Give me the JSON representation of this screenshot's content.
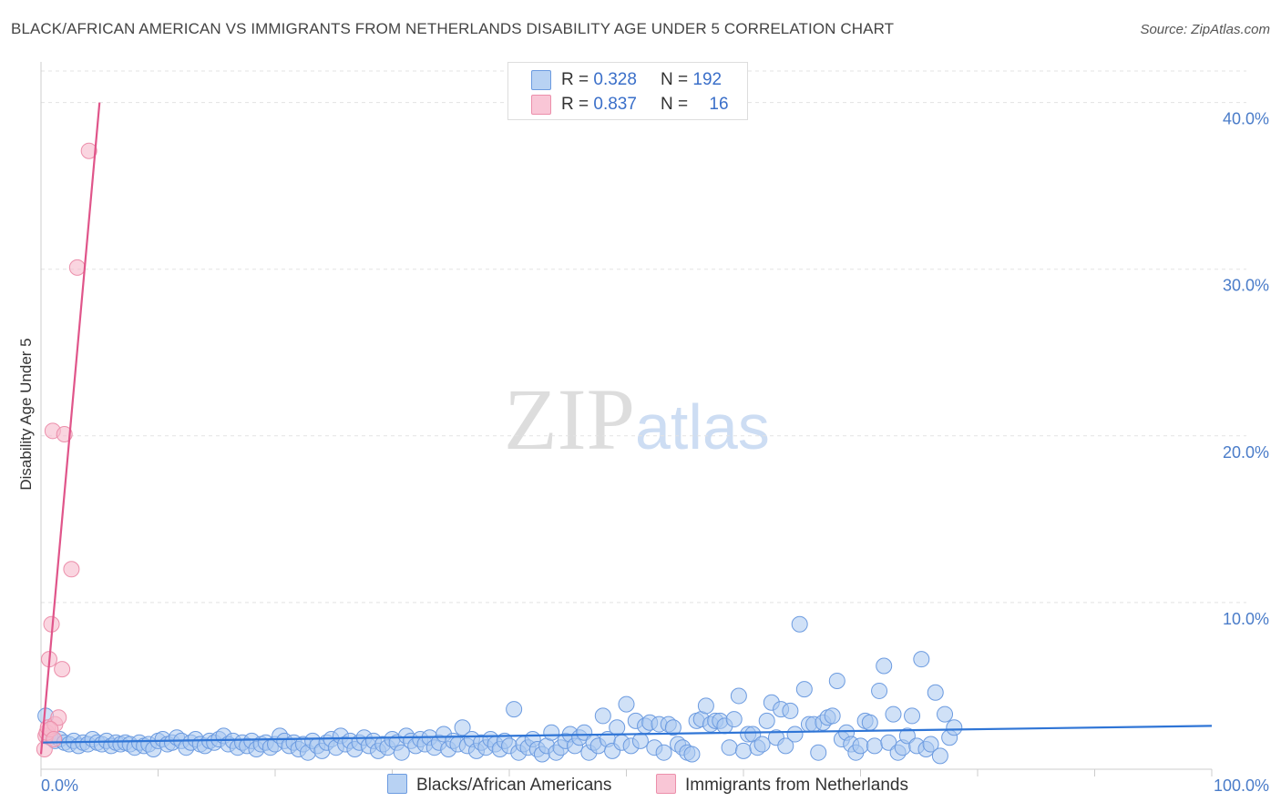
{
  "title": "BLACK/AFRICAN AMERICAN VS IMMIGRANTS FROM NETHERLANDS DISABILITY AGE UNDER 5 CORRELATION CHART",
  "source": "Source: ZipAtlas.com",
  "watermark": {
    "zip": "ZIP",
    "atlas": "atlas"
  },
  "colors": {
    "blue_fill": "#a9c8f0",
    "blue_stroke": "#6c9be0",
    "blue_line": "#2f75d6",
    "pink_fill": "#f7b9cb",
    "pink_stroke": "#ec8fab",
    "pink_line": "#e0558a",
    "grid": "#e3e3e3",
    "tick": "#4a7cc9"
  },
  "legend": {
    "rows": [
      {
        "r_label": "R = ",
        "r_value": "0.328",
        "n_label": "N = ",
        "n_value": "192"
      },
      {
        "r_label": "R = ",
        "r_value": "0.837",
        "n_label": "N = ",
        "n_value": "16"
      }
    ]
  },
  "bottom_legend": [
    "Blacks/African Americans",
    "Immigrants from Netherlands"
  ],
  "chart_data": {
    "type": "scatter",
    "title": "BLACK/AFRICAN AMERICAN VS IMMIGRANTS FROM NETHERLANDS DISABILITY AGE UNDER 5 CORRELATION CHART",
    "xlabel": "",
    "ylabel": "Disability Age Under 5",
    "xlim": [
      0,
      100
    ],
    "ylim": [
      0,
      42
    ],
    "x_tick_labels": [
      "0.0%",
      "100.0%"
    ],
    "y_ticks": [
      10,
      20,
      30,
      40
    ],
    "y_tick_labels": [
      "10.0%",
      "20.0%",
      "30.0%",
      "40.0%"
    ],
    "series": [
      {
        "name": "Blacks/African Americans",
        "r": 0.328,
        "n": 192,
        "trend": {
          "x": [
            0,
            100
          ],
          "y": [
            1.6,
            2.6
          ]
        },
        "points": [
          [
            0.4,
            3.2
          ],
          [
            0.8,
            1.9
          ],
          [
            1.2,
            1.7
          ],
          [
            1.6,
            1.8
          ],
          [
            2,
            1.6
          ],
          [
            2.4,
            1.5
          ],
          [
            2.8,
            1.7
          ],
          [
            3.2,
            1.4
          ],
          [
            3.6,
            1.6
          ],
          [
            4,
            1.5
          ],
          [
            4.4,
            1.8
          ],
          [
            4.8,
            1.6
          ],
          [
            5.2,
            1.5
          ],
          [
            5.6,
            1.7
          ],
          [
            6,
            1.4
          ],
          [
            6.4,
            1.6
          ],
          [
            6.8,
            1.5
          ],
          [
            7.2,
            1.6
          ],
          [
            7.6,
            1.5
          ],
          [
            8,
            1.3
          ],
          [
            8.4,
            1.6
          ],
          [
            8.8,
            1.4
          ],
          [
            9.2,
            1.5
          ],
          [
            9.6,
            1.2
          ],
          [
            10,
            1.7
          ],
          [
            10.4,
            1.8
          ],
          [
            10.8,
            1.5
          ],
          [
            11.2,
            1.6
          ],
          [
            11.6,
            1.9
          ],
          [
            12,
            1.7
          ],
          [
            12.4,
            1.3
          ],
          [
            12.8,
            1.6
          ],
          [
            13.2,
            1.8
          ],
          [
            13.6,
            1.5
          ],
          [
            14,
            1.4
          ],
          [
            14.4,
            1.7
          ],
          [
            14.8,
            1.6
          ],
          [
            15.2,
            1.8
          ],
          [
            15.6,
            2.0
          ],
          [
            16,
            1.5
          ],
          [
            16.4,
            1.7
          ],
          [
            16.8,
            1.3
          ],
          [
            17.2,
            1.6
          ],
          [
            17.6,
            1.4
          ],
          [
            18,
            1.7
          ],
          [
            18.4,
            1.2
          ],
          [
            18.8,
            1.5
          ],
          [
            19.2,
            1.6
          ],
          [
            19.6,
            1.3
          ],
          [
            20,
            1.5
          ],
          [
            20.4,
            2.0
          ],
          [
            20.8,
            1.7
          ],
          [
            21.2,
            1.4
          ],
          [
            21.6,
            1.6
          ],
          [
            22,
            1.2
          ],
          [
            22.4,
            1.5
          ],
          [
            22.8,
            1.0
          ],
          [
            23.2,
            1.7
          ],
          [
            23.6,
            1.4
          ],
          [
            24,
            1.1
          ],
          [
            24.4,
            1.6
          ],
          [
            24.8,
            1.8
          ],
          [
            25.2,
            1.3
          ],
          [
            25.6,
            2.0
          ],
          [
            26,
            1.5
          ],
          [
            26.4,
            1.7
          ],
          [
            26.8,
            1.2
          ],
          [
            27.2,
            1.6
          ],
          [
            27.6,
            1.9
          ],
          [
            28,
            1.4
          ],
          [
            28.4,
            1.7
          ],
          [
            28.8,
            1.1
          ],
          [
            29.2,
            1.5
          ],
          [
            29.6,
            1.3
          ],
          [
            30,
            1.8
          ],
          [
            30.4,
            1.6
          ],
          [
            30.8,
            1.0
          ],
          [
            31.2,
            2.0
          ],
          [
            31.6,
            1.7
          ],
          [
            32,
            1.4
          ],
          [
            32.4,
            1.8
          ],
          [
            32.8,
            1.5
          ],
          [
            33.2,
            1.9
          ],
          [
            33.6,
            1.3
          ],
          [
            34,
            1.6
          ],
          [
            34.4,
            2.1
          ],
          [
            34.8,
            1.2
          ],
          [
            35.2,
            1.7
          ],
          [
            35.6,
            1.5
          ],
          [
            36,
            2.5
          ],
          [
            36.4,
            1.4
          ],
          [
            36.8,
            1.8
          ],
          [
            37.2,
            1.1
          ],
          [
            37.6,
            1.6
          ],
          [
            38,
            1.3
          ],
          [
            38.4,
            1.8
          ],
          [
            38.8,
            1.5
          ],
          [
            39.2,
            1.2
          ],
          [
            39.6,
            1.7
          ],
          [
            40,
            1.4
          ],
          [
            40.4,
            3.6
          ],
          [
            40.8,
            1.0
          ],
          [
            41.2,
            1.5
          ],
          [
            41.6,
            1.3
          ],
          [
            42,
            1.8
          ],
          [
            42.4,
            1.2
          ],
          [
            42.8,
            0.9
          ],
          [
            43.2,
            1.4
          ],
          [
            43.6,
            2.2
          ],
          [
            44,
            1.0
          ],
          [
            44.4,
            1.3
          ],
          [
            44.8,
            1.7
          ],
          [
            45.2,
            2.1
          ],
          [
            45.6,
            1.4
          ],
          [
            46,
            1.9
          ],
          [
            46.4,
            2.2
          ],
          [
            46.8,
            1.0
          ],
          [
            47.2,
            1.6
          ],
          [
            47.6,
            1.4
          ],
          [
            48,
            3.2
          ],
          [
            48.4,
            1.8
          ],
          [
            48.8,
            1.1
          ],
          [
            49.2,
            2.5
          ],
          [
            49.6,
            1.6
          ],
          [
            50,
            3.9
          ],
          [
            50.4,
            1.4
          ],
          [
            50.8,
            2.9
          ],
          [
            51.2,
            1.7
          ],
          [
            51.6,
            2.6
          ],
          [
            52,
            2.8
          ],
          [
            52.4,
            1.3
          ],
          [
            52.8,
            2.7
          ],
          [
            53.2,
            1.0
          ],
          [
            53.6,
            2.7
          ],
          [
            54,
            2.5
          ],
          [
            54.4,
            1.5
          ],
          [
            54.8,
            1.3
          ],
          [
            55.2,
            1.0
          ],
          [
            55.6,
            0.9
          ],
          [
            56,
            2.9
          ],
          [
            56.4,
            3.0
          ],
          [
            56.8,
            3.8
          ],
          [
            57.2,
            2.7
          ],
          [
            57.6,
            2.9
          ],
          [
            58,
            2.9
          ],
          [
            58.4,
            2.6
          ],
          [
            58.8,
            1.3
          ],
          [
            59.2,
            3.0
          ],
          [
            59.6,
            4.4
          ],
          [
            60,
            1.1
          ],
          [
            60.4,
            2.1
          ],
          [
            60.8,
            2.1
          ],
          [
            61.2,
            1.3
          ],
          [
            61.6,
            1.5
          ],
          [
            62,
            2.9
          ],
          [
            62.4,
            4.0
          ],
          [
            62.8,
            1.9
          ],
          [
            63.2,
            3.6
          ],
          [
            63.6,
            1.4
          ],
          [
            64,
            3.5
          ],
          [
            64.4,
            2.1
          ],
          [
            64.8,
            8.7
          ],
          [
            65.2,
            4.8
          ],
          [
            65.6,
            2.7
          ],
          [
            66,
            2.7
          ],
          [
            66.4,
            1.0
          ],
          [
            66.8,
            2.8
          ],
          [
            67.2,
            3.1
          ],
          [
            67.6,
            3.2
          ],
          [
            68,
            5.3
          ],
          [
            68.4,
            1.8
          ],
          [
            68.8,
            2.2
          ],
          [
            69.2,
            1.5
          ],
          [
            69.6,
            1.0
          ],
          [
            70,
            1.4
          ],
          [
            70.4,
            2.9
          ],
          [
            70.8,
            2.8
          ],
          [
            71.2,
            1.4
          ],
          [
            71.6,
            4.7
          ],
          [
            72,
            6.2
          ],
          [
            72.4,
            1.6
          ],
          [
            72.8,
            3.3
          ],
          [
            73.2,
            1.0
          ],
          [
            73.6,
            1.3
          ],
          [
            74,
            2.0
          ],
          [
            74.4,
            3.2
          ],
          [
            74.8,
            1.4
          ],
          [
            75.2,
            6.6
          ],
          [
            75.6,
            1.2
          ],
          [
            76,
            1.5
          ],
          [
            76.4,
            4.6
          ],
          [
            76.8,
            0.8
          ],
          [
            77.2,
            3.3
          ],
          [
            77.6,
            1.9
          ],
          [
            78,
            2.5
          ]
        ]
      },
      {
        "name": "Immigrants from Netherlands",
        "r": 0.837,
        "n": 16,
        "trend": {
          "x": [
            0,
            5
          ],
          "y": [
            0.9,
            40
          ]
        },
        "points": [
          [
            0.3,
            1.2
          ],
          [
            0.4,
            2.0
          ],
          [
            0.5,
            2.2
          ],
          [
            0.6,
            2.5
          ],
          [
            0.7,
            6.6
          ],
          [
            0.9,
            8.7
          ],
          [
            1.0,
            20.3
          ],
          [
            1.2,
            2.7
          ],
          [
            1.5,
            3.1
          ],
          [
            2.0,
            20.1
          ],
          [
            1.8,
            6.0
          ],
          [
            2.6,
            12.0
          ],
          [
            3.1,
            30.1
          ],
          [
            4.1,
            37.1
          ],
          [
            0.8,
            2.4
          ],
          [
            1.1,
            1.8
          ]
        ]
      }
    ]
  }
}
